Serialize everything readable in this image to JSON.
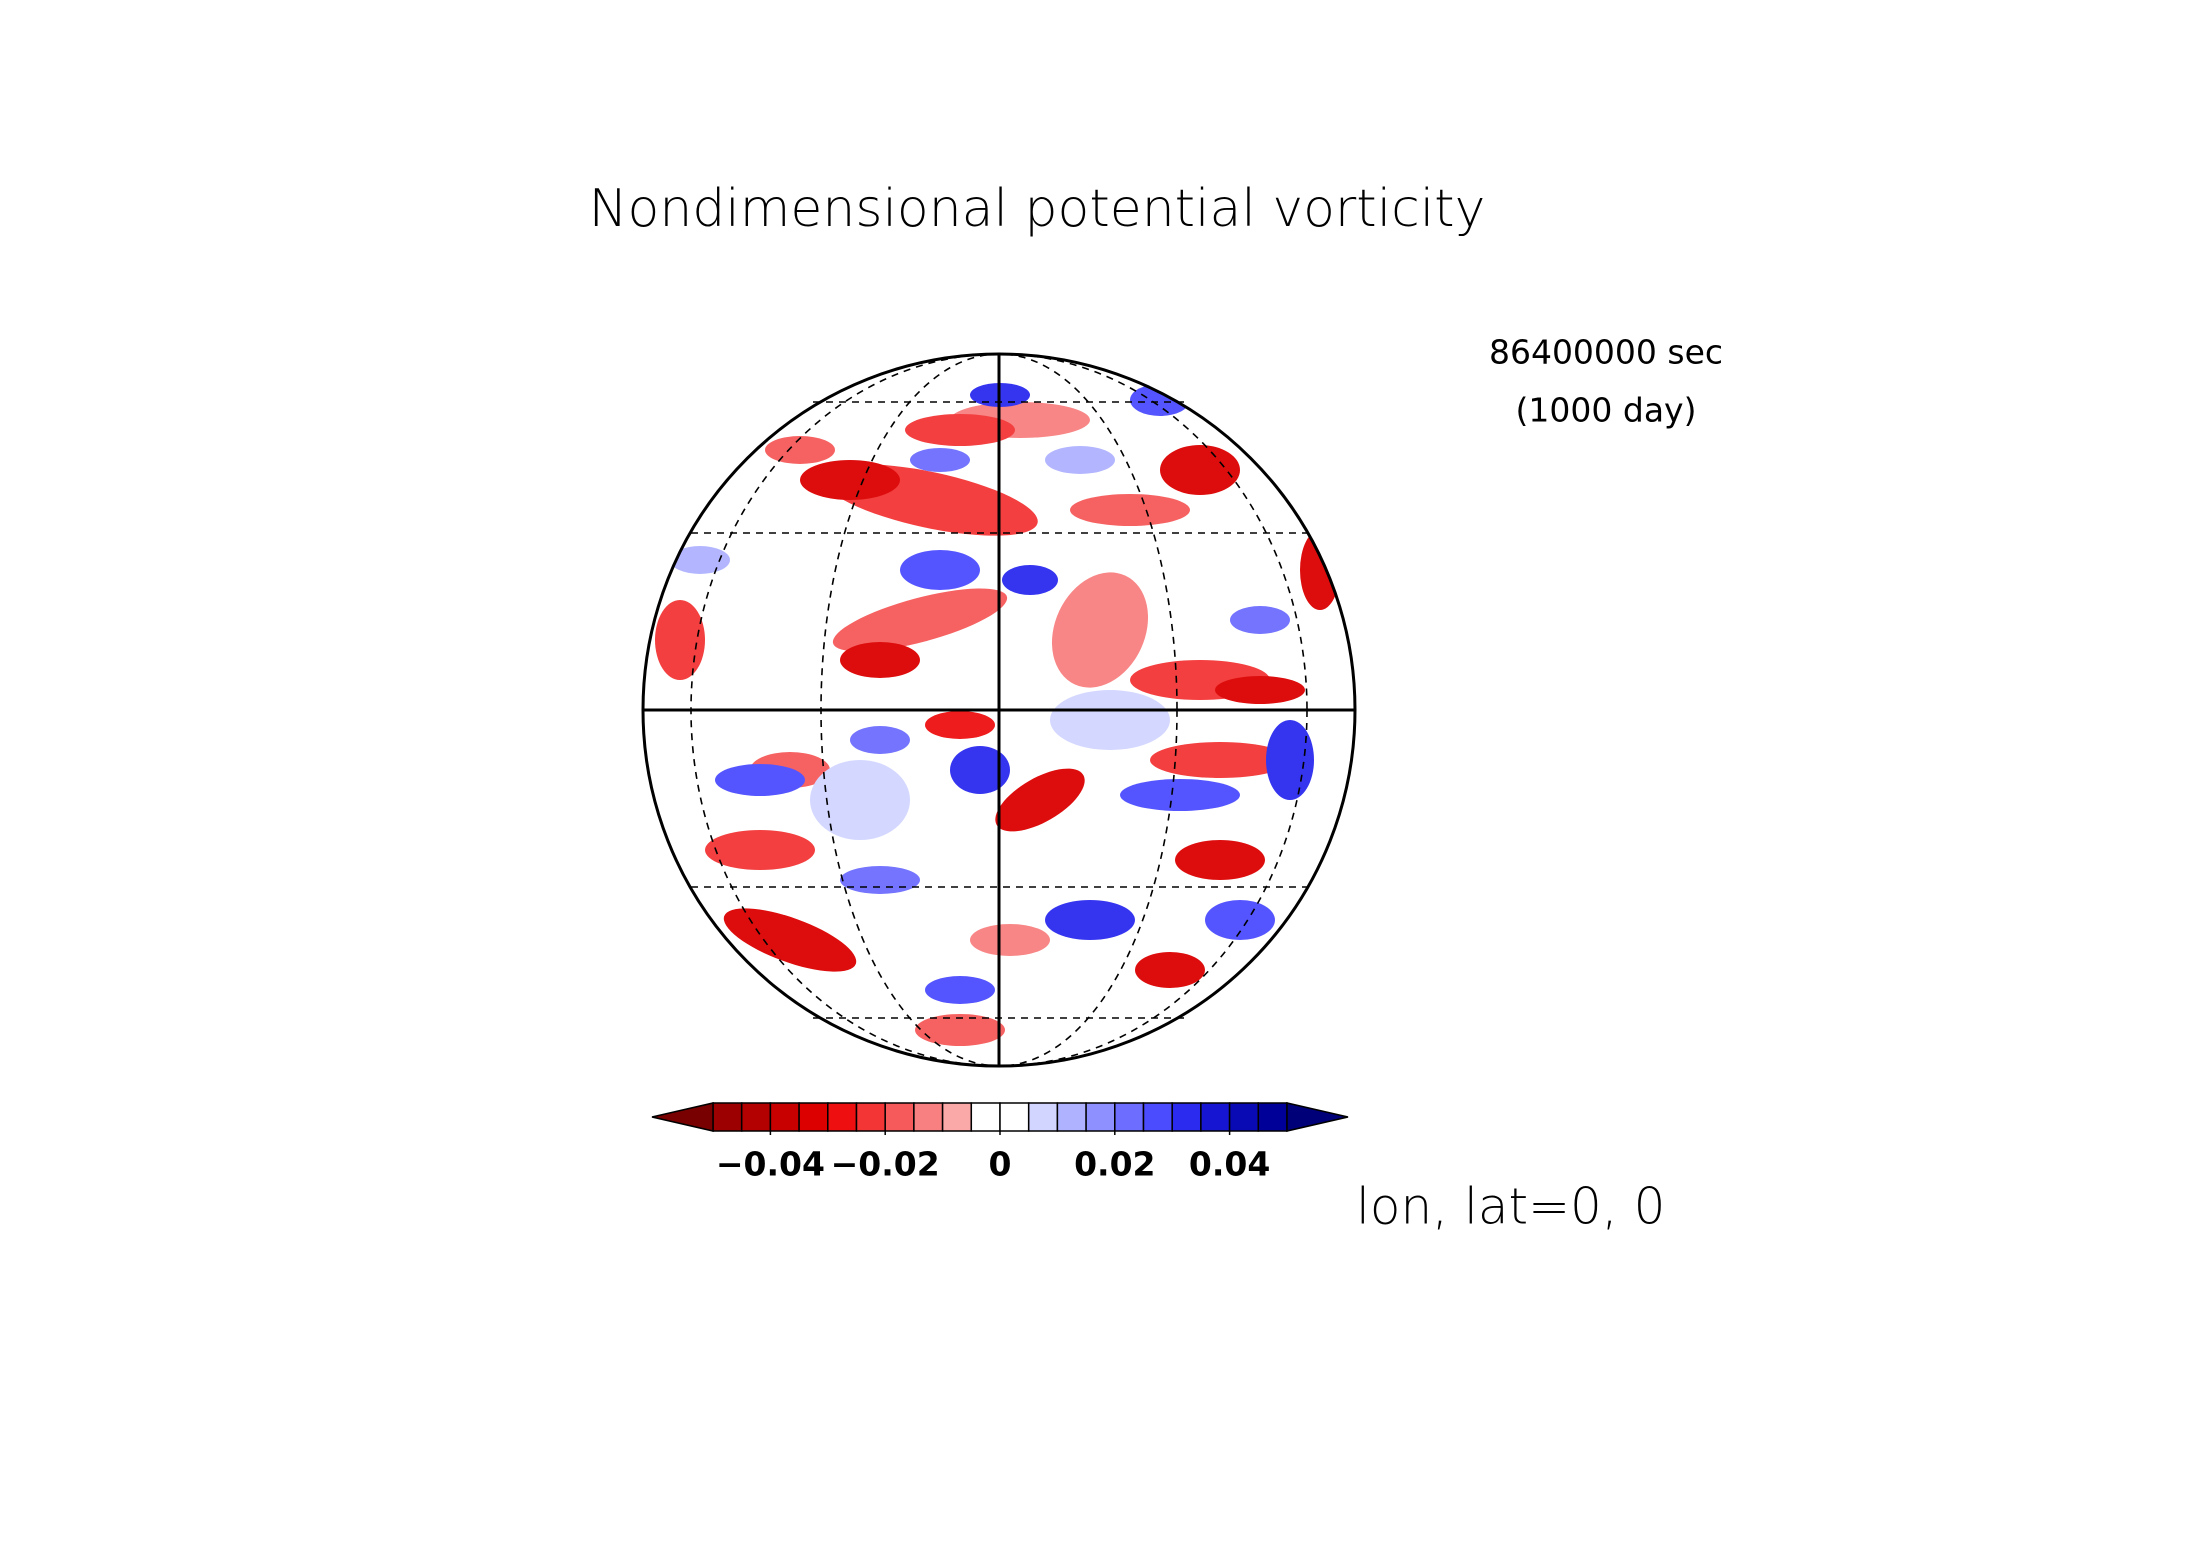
{
  "chart_data": {
    "type": "contour",
    "title": "Nondimensional potential vorticity",
    "annotations": [
      "86400000 sec",
      "(1000 day)",
      "lon, lat=0, 0"
    ],
    "levels": [
      -0.05,
      -0.045,
      -0.04,
      -0.035,
      -0.03,
      -0.025,
      -0.02,
      -0.015,
      -0.01,
      -0.005,
      0,
      0.005,
      0.01,
      0.015,
      0.02,
      0.025,
      0.03,
      0.035,
      0.04,
      0.045,
      0.05
    ],
    "colors": [
      "#9c0000",
      "#b30000",
      "#c80000",
      "#dc0000",
      "#ee1010",
      "#f33535",
      "#f65a5a",
      "#f88080",
      "#fba8a8",
      "#ffffff",
      "#ffffff",
      "#d2d5ff",
      "#afb3ff",
      "#8e90ff",
      "#6d6dff",
      "#4c4cff",
      "#2b2bf0",
      "#1616d2",
      "#0a0ab5",
      "#000098"
    ],
    "extend_colors": [
      "#780000",
      "#000078"
    ],
    "xlim": [
      -0.05,
      0.05
    ],
    "xticks": [
      {
        "value": -0.04,
        "label": "−0.04"
      },
      {
        "value": -0.02,
        "label": "−0.02"
      },
      0,
      0.02,
      0.04
    ]
  }
}
